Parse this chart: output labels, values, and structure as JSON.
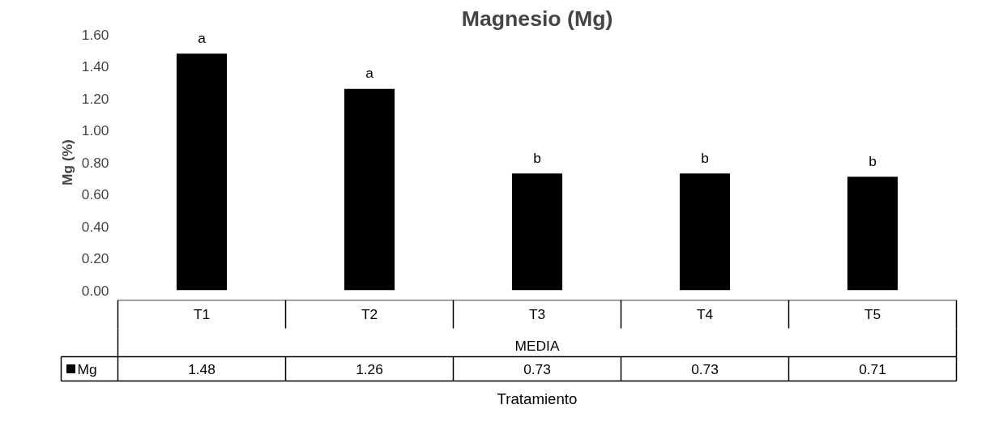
{
  "chart_data": {
    "type": "bar",
    "title": "Magnesio (Mg)",
    "ylabel": "Mg (%)",
    "xlabel": "Tratamiento",
    "categories": [
      "T1",
      "T2",
      "T3",
      "T4",
      "T5"
    ],
    "series": [
      {
        "name": "Mg",
        "color": "#000000",
        "values": [
          1.48,
          1.26,
          0.73,
          0.73,
          0.71
        ]
      }
    ],
    "ylim": [
      0,
      1.6
    ],
    "yticks": [
      {
        "value": 0,
        "label": "0.00"
      },
      {
        "value": 0.2,
        "label": "0.20"
      },
      {
        "value": 0.4,
        "label": "0.40"
      },
      {
        "value": 0.6,
        "label": "0.60"
      },
      {
        "value": 0.8,
        "label": "0.80"
      },
      {
        "value": 1.0,
        "label": "1.00"
      },
      {
        "value": 1.2,
        "label": "1.20"
      },
      {
        "value": 1.4,
        "label": "1.40"
      },
      {
        "value": 1.6,
        "label": "1.60"
      }
    ],
    "annotations": [
      "a",
      "a",
      "b",
      "b",
      "b",
      "MEDIA"
    ],
    "data_labels": true,
    "legend": "bottom",
    "grid": false
  }
}
